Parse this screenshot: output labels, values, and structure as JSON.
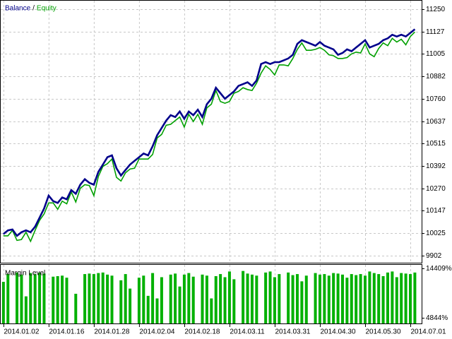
{
  "chart_data": [
    {
      "type": "line",
      "legend_separator": "/",
      "x": [
        0,
        1,
        2,
        3,
        4,
        5,
        6,
        7,
        8,
        9,
        10,
        11,
        12,
        13,
        14,
        15,
        16,
        17,
        18,
        19,
        20,
        21,
        22,
        23,
        24,
        25,
        26,
        27,
        28,
        29,
        30,
        31,
        32,
        33,
        34,
        35,
        36,
        37,
        38,
        39,
        40,
        41,
        42,
        43,
        44,
        45,
        46,
        47,
        48,
        49,
        50,
        51,
        52,
        53,
        54,
        55,
        56,
        57,
        58,
        59,
        60,
        61,
        62,
        63,
        64,
        65,
        66,
        67,
        68,
        69,
        70,
        71,
        72,
        73,
        74,
        75,
        76,
        77,
        78,
        79,
        80,
        81,
        82,
        83,
        84,
        85,
        86,
        87,
        88,
        89,
        90,
        91
      ],
      "series": [
        {
          "name": "Equity",
          "color": "#00a000",
          "values": [
            10010,
            10010,
            10040,
            9985,
            9990,
            10030,
            9980,
            10040,
            10095,
            10130,
            10190,
            10190,
            10155,
            10200,
            10185,
            10250,
            10195,
            10270,
            10290,
            10285,
            10230,
            10335,
            10390,
            10405,
            10430,
            10330,
            10310,
            10355,
            10375,
            10380,
            10430,
            10430,
            10430,
            10455,
            10545,
            10565,
            10615,
            10620,
            10640,
            10660,
            10605,
            10675,
            10635,
            10675,
            10620,
            10710,
            10730,
            10805,
            10745,
            10735,
            10745,
            10790,
            10800,
            10820,
            10810,
            10805,
            10845,
            10900,
            10940,
            10920,
            10890,
            10945,
            10945,
            10940,
            10980,
            11030,
            11065,
            11025,
            11025,
            11030,
            11040,
            11025,
            11000,
            10995,
            10980,
            10980,
            10985,
            11005,
            11015,
            11010,
            11060,
            11005,
            10990,
            11035,
            11065,
            11050,
            11090,
            11070,
            11085,
            11055,
            11100,
            11125
          ]
        },
        {
          "name": "Balance",
          "color": "#00008b",
          "values": [
            10020,
            10040,
            10045,
            10010,
            10030,
            10040,
            10030,
            10060,
            10110,
            10160,
            10230,
            10200,
            10190,
            10220,
            10210,
            10260,
            10240,
            10290,
            10320,
            10300,
            10290,
            10360,
            10400,
            10440,
            10450,
            10380,
            10340,
            10370,
            10400,
            10420,
            10440,
            10460,
            10450,
            10500,
            10560,
            10600,
            10640,
            10670,
            10660,
            10690,
            10650,
            10690,
            10670,
            10700,
            10660,
            10730,
            10760,
            10820,
            10790,
            10760,
            10780,
            10800,
            10830,
            10840,
            10850,
            10830,
            10860,
            10950,
            10960,
            10950,
            10960,
            10960,
            10970,
            10980,
            11000,
            11060,
            11080,
            11070,
            11060,
            11050,
            11070,
            11050,
            11040,
            11030,
            11000,
            11010,
            11030,
            11020,
            11040,
            11060,
            11080,
            11040,
            11050,
            11060,
            11080,
            11090,
            11110,
            11100,
            11110,
            11100,
            11120,
            11140
          ]
        }
      ],
      "xlim": [
        -0.6,
        92.5
      ],
      "ylim": [
        9863,
        11296
      ],
      "yticks": [
        11250,
        11127,
        11005,
        10882,
        10760,
        10637,
        10515,
        10392,
        10270,
        10147,
        10025,
        9902
      ],
      "grid": true
    },
    {
      "type": "bar",
      "title": "Margin Level",
      "color": "#00b000",
      "x": [
        0,
        1,
        2,
        3,
        4,
        5,
        6,
        7,
        8,
        9,
        10,
        11,
        12,
        13,
        14,
        15,
        16,
        17,
        18,
        19,
        20,
        21,
        22,
        23,
        24,
        25,
        26,
        27,
        28,
        29,
        30,
        31,
        32,
        33,
        34,
        35,
        36,
        37,
        38,
        39,
        40,
        41,
        42,
        43,
        44,
        45,
        46,
        47,
        48,
        49,
        50,
        51,
        52,
        53,
        54,
        55,
        56,
        57,
        58,
        59,
        60,
        61,
        62,
        63,
        64,
        65,
        66,
        67,
        68,
        69,
        70,
        71,
        72,
        73,
        74,
        75,
        76,
        77,
        78,
        79,
        80,
        81,
        82,
        83,
        84,
        85,
        86,
        87,
        88,
        89,
        90,
        91
      ],
      "values": [
        11800,
        13300,
        null,
        13600,
        13200,
        9000,
        13500,
        13300,
        13600,
        13400,
        null,
        12800,
        12900,
        13000,
        12600,
        null,
        9500,
        null,
        13300,
        13400,
        13300,
        13500,
        13600,
        13200,
        13000,
        null,
        12100,
        13300,
        10500,
        null,
        12600,
        13000,
        9100,
        13500,
        8600,
        12700,
        null,
        13200,
        13400,
        10900,
        13200,
        13500,
        12800,
        null,
        13200,
        13000,
        8600,
        12900,
        13300,
        12700,
        13800,
        12300,
        null,
        13900,
        13400,
        13200,
        13000,
        null,
        13600,
        13800,
        12700,
        13300,
        null,
        13600,
        13100,
        13300,
        11900,
        13000,
        null,
        13500,
        13200,
        13300,
        13000,
        13500,
        13400,
        13200,
        12600,
        13300,
        13100,
        13300,
        13000,
        13800,
        13500,
        13300,
        12900,
        13600,
        13800,
        12700,
        13500,
        13400,
        13300,
        13600
      ],
      "xlim": [
        -0.6,
        92.5
      ],
      "ylim": [
        3766,
        15083
      ],
      "yticks": [
        {
          "value": 14409,
          "label": "14409%"
        },
        {
          "value": 4844,
          "label": "4844%"
        }
      ],
      "xticks": [
        {
          "value": 0,
          "label": "2014.01.02"
        },
        {
          "value": 10,
          "label": "2014.01.16"
        },
        {
          "value": 20,
          "label": "2014.01.28"
        },
        {
          "value": 30,
          "label": "2014.02.04"
        },
        {
          "value": 40,
          "label": "2014.02.18"
        },
        {
          "value": 50,
          "label": "2014.03.11"
        },
        {
          "value": 60,
          "label": "2014.03.31"
        },
        {
          "value": 70,
          "label": "2014.04.30"
        },
        {
          "value": 80,
          "label": "2014.05.30"
        },
        {
          "value": 90,
          "label": "2014.07.01"
        }
      ],
      "grid": true
    }
  ]
}
